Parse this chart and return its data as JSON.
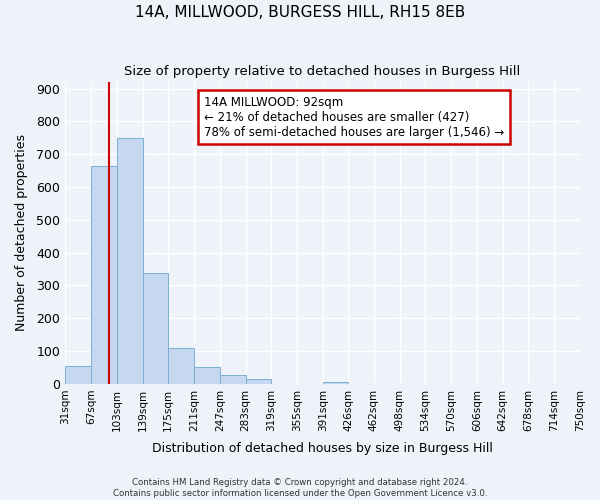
{
  "title_line1": "14A, MILLWOOD, BURGESS HILL, RH15 8EB",
  "title_line2": "Size of property relative to detached houses in Burgess Hill",
  "xlabel": "Distribution of detached houses by size in Burgess Hill",
  "ylabel": "Number of detached properties",
  "bin_edges": [
    31,
    67,
    103,
    139,
    175,
    211,
    247,
    283,
    319,
    355,
    391,
    426,
    462,
    498,
    534,
    570,
    606,
    642,
    678,
    714,
    750
  ],
  "bar_heights": [
    55,
    665,
    750,
    337,
    110,
    53,
    27,
    15,
    0,
    0,
    5,
    0,
    0,
    0,
    0,
    0,
    0,
    0,
    0,
    0
  ],
  "bar_color": "#c5d8f0",
  "bar_edgecolor": "#7aafd4",
  "property_line_x": 92,
  "ylim": [
    0,
    920
  ],
  "yticks": [
    0,
    100,
    200,
    300,
    400,
    500,
    600,
    700,
    800,
    900
  ],
  "xtick_labels": [
    "31sqm",
    "67sqm",
    "103sqm",
    "139sqm",
    "175sqm",
    "211sqm",
    "247sqm",
    "283sqm",
    "319sqm",
    "355sqm",
    "391sqm",
    "426sqm",
    "462sqm",
    "498sqm",
    "534sqm",
    "570sqm",
    "606sqm",
    "642sqm",
    "678sqm",
    "714sqm",
    "750sqm"
  ],
  "annotation_text_line1": "14A MILLWOOD: 92sqm",
  "annotation_text_line2": "← 21% of detached houses are smaller (427)",
  "annotation_text_line3": "78% of semi-detached houses are larger (1,546) →",
  "red_line_color": "#cc0000",
  "annotation_box_color": "#ffffff",
  "annotation_box_edgecolor": "#cc0000",
  "footer_line1": "Contains HM Land Registry data © Crown copyright and database right 2024.",
  "footer_line2": "Contains public sector information licensed under the Open Government Licence v3.0.",
  "background_color": "#eef2f9",
  "grid_color": "#ffffff",
  "fig_width": 6.0,
  "fig_height": 5.0
}
